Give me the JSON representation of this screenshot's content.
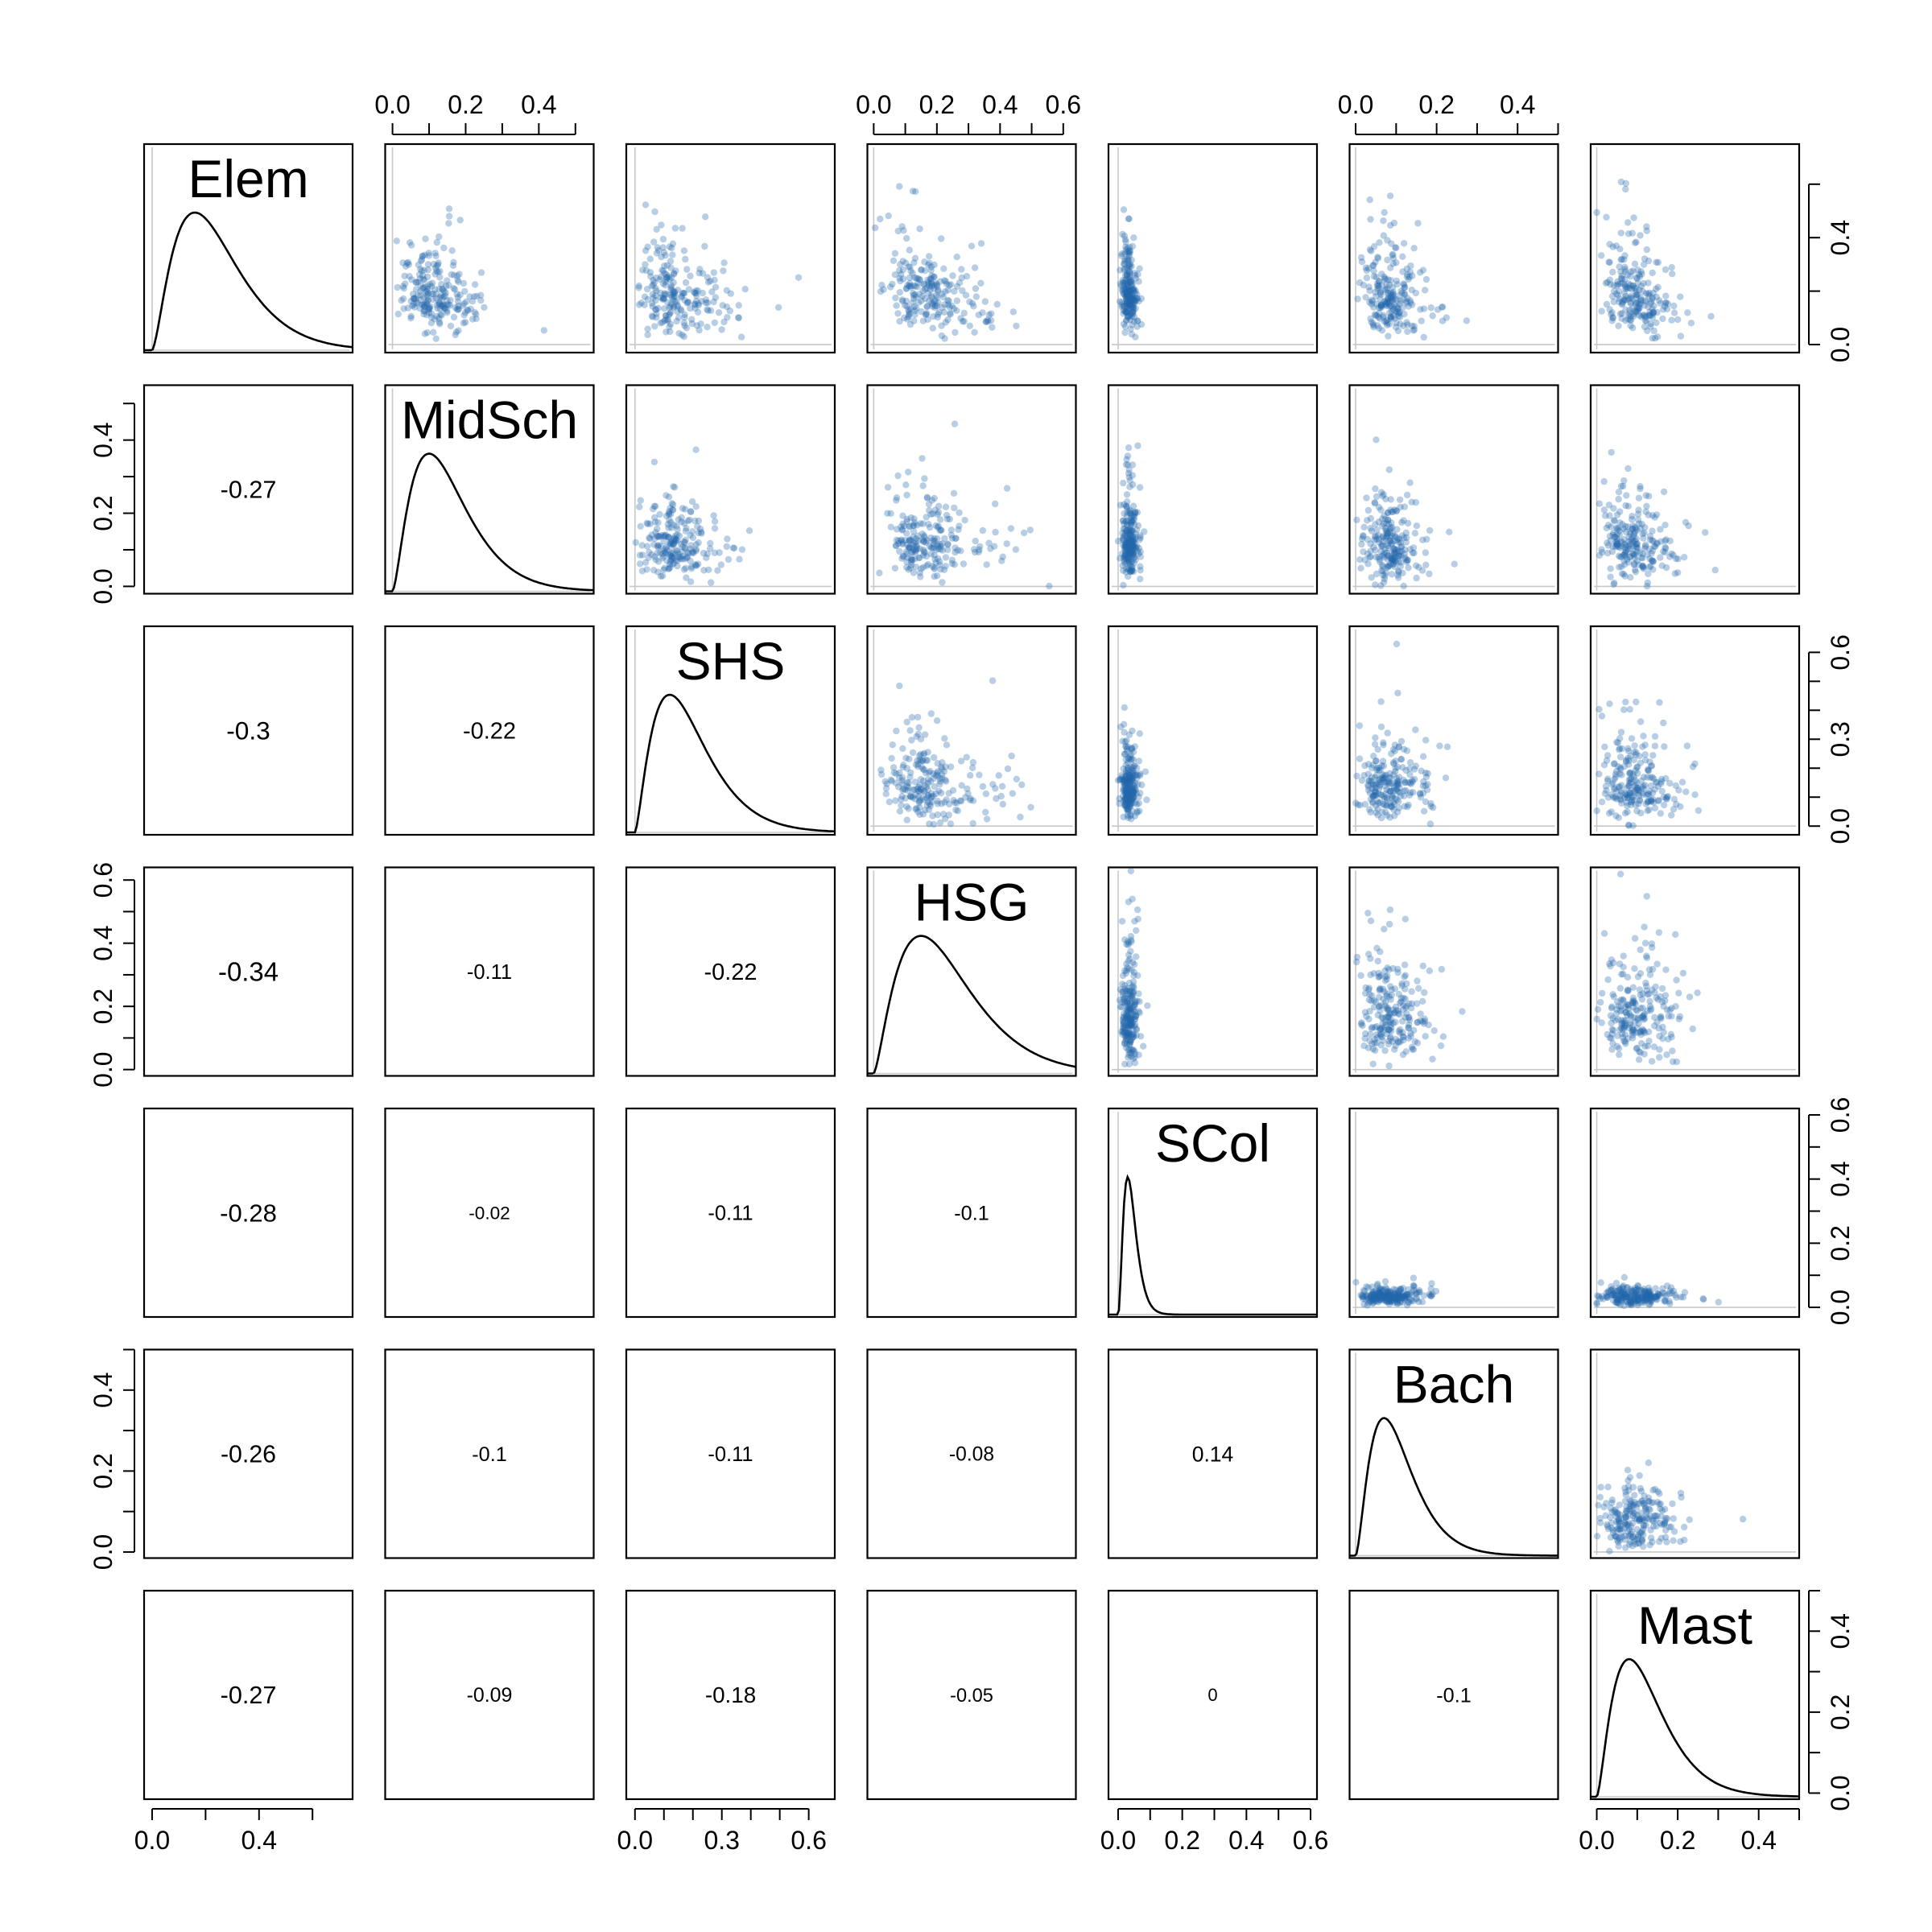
{
  "chart_data": {
    "type": "scatter",
    "subtype": "pairs-matrix",
    "lower_panels": "correlation",
    "diagonal_panels": "density",
    "upper_panels": "scatter",
    "point_color": "#2166ac",
    "variables": [
      {
        "name": "Elem",
        "range": [
          -0.03,
          0.75
        ],
        "density_mode": 0.16,
        "density_width": 0.3,
        "skew": 1.6,
        "ticks": [
          0.0,
          0.2,
          0.4,
          0.6
        ],
        "tick_labels": [
          "0.0",
          "0.4"
        ],
        "tick_label_values": [
          0.0,
          0.4
        ]
      },
      {
        "name": "MidSch",
        "range": [
          -0.02,
          0.55
        ],
        "density_mode": 0.1,
        "density_width": 0.22,
        "skew": 1.6,
        "ticks": [
          0.0,
          0.1,
          0.2,
          0.3,
          0.4,
          0.5
        ],
        "tick_labels": [
          "0.0",
          "0.2",
          "0.4"
        ],
        "tick_label_values": [
          0.0,
          0.2,
          0.4
        ]
      },
      {
        "name": "SHS",
        "range": [
          -0.03,
          0.69
        ],
        "density_mode": 0.12,
        "density_width": 0.28,
        "skew": 1.5,
        "ticks": [
          0.0,
          0.1,
          0.2,
          0.3,
          0.4,
          0.5,
          0.6
        ],
        "tick_labels": [
          "0.0",
          "0.3",
          "0.6"
        ],
        "tick_label_values": [
          0.0,
          0.3,
          0.6
        ]
      },
      {
        "name": "HSG",
        "range": [
          -0.02,
          0.64
        ],
        "density_mode": 0.15,
        "density_width": 0.28,
        "skew": 1.5,
        "ticks": [
          0.0,
          0.1,
          0.2,
          0.3,
          0.4,
          0.5,
          0.6
        ],
        "tick_labels": [
          "0.0",
          "0.2",
          "0.4",
          "0.6"
        ],
        "tick_label_values": [
          0.0,
          0.2,
          0.4,
          0.6
        ]
      },
      {
        "name": "SCol",
        "range": [
          -0.03,
          0.62
        ],
        "density_mode": 0.03,
        "density_width": 0.08,
        "skew": 2.2,
        "ticks": [
          0.0,
          0.1,
          0.2,
          0.3,
          0.4,
          0.5,
          0.6
        ],
        "tick_labels": [
          "0.0",
          "0.2",
          "0.4",
          "0.6"
        ],
        "tick_label_values": [
          0.0,
          0.2,
          0.4,
          0.6
        ]
      },
      {
        "name": "Bach",
        "range": [
          -0.015,
          0.5
        ],
        "density_mode": 0.07,
        "density_width": 0.2,
        "skew": 1.7,
        "ticks": [
          0.0,
          0.1,
          0.2,
          0.3,
          0.4,
          0.5
        ],
        "tick_labels": [
          "0.0",
          "0.2",
          "0.4"
        ],
        "tick_label_values": [
          0.0,
          0.2,
          0.4
        ]
      },
      {
        "name": "Mast",
        "range": [
          -0.015,
          0.5
        ],
        "density_mode": 0.08,
        "density_width": 0.22,
        "skew": 1.6,
        "ticks": [
          0.0,
          0.1,
          0.2,
          0.3,
          0.4,
          0.5
        ],
        "tick_labels": [
          "0.0",
          "0.2",
          "0.4"
        ],
        "tick_label_values": [
          0.0,
          0.2,
          0.4
        ]
      }
    ],
    "correlations": [
      {
        "row": 1,
        "col": 0,
        "value": -0.27,
        "label": "-0.27"
      },
      {
        "row": 2,
        "col": 0,
        "value": -0.3,
        "label": "-0.3"
      },
      {
        "row": 2,
        "col": 1,
        "value": -0.22,
        "label": "-0.22"
      },
      {
        "row": 3,
        "col": 0,
        "value": -0.34,
        "label": "-0.34"
      },
      {
        "row": 3,
        "col": 1,
        "value": -0.11,
        "label": "-0.11"
      },
      {
        "row": 3,
        "col": 2,
        "value": -0.22,
        "label": "-0.22"
      },
      {
        "row": 4,
        "col": 0,
        "value": -0.28,
        "label": "-0.28"
      },
      {
        "row": 4,
        "col": 1,
        "value": -0.02,
        "label": "-0.02"
      },
      {
        "row": 4,
        "col": 2,
        "value": -0.11,
        "label": "-0.11"
      },
      {
        "row": 4,
        "col": 3,
        "value": -0.1,
        "label": "-0.1"
      },
      {
        "row": 5,
        "col": 0,
        "value": -0.26,
        "label": "-0.26"
      },
      {
        "row": 5,
        "col": 1,
        "value": -0.1,
        "label": "-0.1"
      },
      {
        "row": 5,
        "col": 2,
        "value": -0.11,
        "label": "-0.11"
      },
      {
        "row": 5,
        "col": 3,
        "value": -0.08,
        "label": "-0.08"
      },
      {
        "row": 5,
        "col": 4,
        "value": 0.14,
        "label": "0.14"
      },
      {
        "row": 6,
        "col": 0,
        "value": -0.27,
        "label": "-0.27"
      },
      {
        "row": 6,
        "col": 1,
        "value": -0.09,
        "label": "-0.09"
      },
      {
        "row": 6,
        "col": 2,
        "value": -0.18,
        "label": "-0.18"
      },
      {
        "row": 6,
        "col": 3,
        "value": -0.05,
        "label": "-0.05"
      },
      {
        "row": 6,
        "col": 4,
        "value": 0.0,
        "label": "0"
      },
      {
        "row": 6,
        "col": 5,
        "value": -0.1,
        "label": "-0.1"
      }
    ],
    "axes": {
      "top": [
        1,
        3,
        5
      ],
      "bottom": [
        0,
        2,
        4,
        6
      ],
      "left": [
        1,
        3,
        5
      ],
      "right": [
        0,
        2,
        4,
        6
      ]
    },
    "points_per_panel": 220
  }
}
